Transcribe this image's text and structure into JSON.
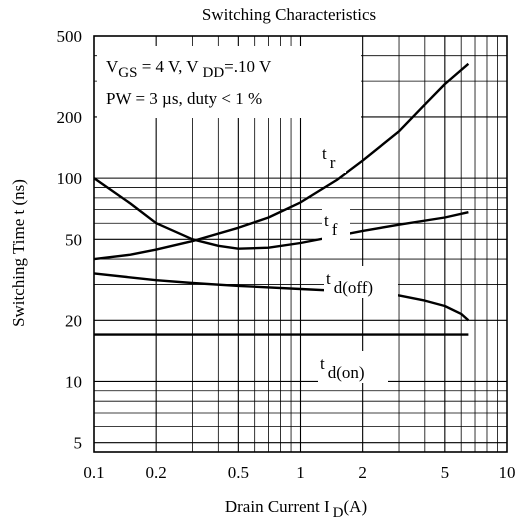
{
  "chart_data": {
    "type": "line",
    "title": "Switching Characteristics",
    "xlabel": {
      "main": "Drain Current   I",
      "sub": "D",
      "unit": "(A)"
    },
    "ylabel": "Switching Time   t  (ns)",
    "x_scale": "log",
    "y_scale": "log",
    "xlim": [
      0.1,
      10
    ],
    "ylim": [
      4.5,
      500
    ],
    "grid": true,
    "x_ticks": [
      {
        "v": 0.1,
        "label": "0.1"
      },
      {
        "v": 0.2,
        "label": "0.2"
      },
      {
        "v": 0.5,
        "label": "0.5"
      },
      {
        "v": 1,
        "label": "1"
      },
      {
        "v": 2,
        "label": "2"
      },
      {
        "v": 5,
        "label": "5"
      },
      {
        "v": 10,
        "label": "10"
      }
    ],
    "y_ticks": [
      {
        "v": 5,
        "label": "5"
      },
      {
        "v": 10,
        "label": "10"
      },
      {
        "v": 20,
        "label": "20"
      },
      {
        "v": 50,
        "label": "50"
      },
      {
        "v": 100,
        "label": "100"
      },
      {
        "v": 200,
        "label": "200"
      },
      {
        "v": 500,
        "label": "500"
      }
    ],
    "conditions": {
      "line1": {
        "a": "V",
        "a_sub": "GS",
        "b": " = 4 V, V ",
        "b_sub": "DD",
        "c": "=.10 V"
      },
      "line2": "PW = 3 µs, duty < 1 %"
    },
    "series": [
      {
        "name": "t r",
        "label_main": "t",
        "label_sub": "r",
        "points": [
          [
            0.1,
            40
          ],
          [
            0.15,
            42
          ],
          [
            0.2,
            44.5
          ],
          [
            0.3,
            49
          ],
          [
            0.5,
            57
          ],
          [
            0.7,
            64
          ],
          [
            1,
            76
          ],
          [
            1.5,
            98
          ],
          [
            2,
            122
          ],
          [
            3,
            170
          ],
          [
            4,
            230
          ],
          [
            5,
            290
          ],
          [
            6.5,
            365
          ]
        ]
      },
      {
        "name": "t f",
        "label_main": "t",
        "label_sub": "f",
        "points": [
          [
            0.1,
            100
          ],
          [
            0.15,
            75
          ],
          [
            0.2,
            60
          ],
          [
            0.3,
            50
          ],
          [
            0.4,
            46.5
          ],
          [
            0.5,
            45
          ],
          [
            0.7,
            45.5
          ],
          [
            1,
            48
          ],
          [
            2,
            55
          ],
          [
            3,
            59
          ],
          [
            5,
            64
          ],
          [
            6.5,
            68
          ]
        ]
      },
      {
        "name": "t d(off)",
        "label_main": "t",
        "label_sub": "d(off)",
        "points": [
          [
            0.1,
            34
          ],
          [
            0.15,
            32.5
          ],
          [
            0.2,
            31.5
          ],
          [
            0.3,
            30.5
          ],
          [
            0.5,
            29.5
          ],
          [
            1,
            28.5
          ],
          [
            2,
            27.5
          ],
          [
            3,
            26.5
          ],
          [
            4,
            25
          ],
          [
            5,
            23.5
          ],
          [
            6,
            21.5
          ],
          [
            6.5,
            20
          ]
        ]
      },
      {
        "name": "t d(on)",
        "label_main": "t",
        "label_sub": "d(on)",
        "points": [
          [
            0.1,
            17
          ],
          [
            6.5,
            17
          ]
        ]
      }
    ]
  }
}
